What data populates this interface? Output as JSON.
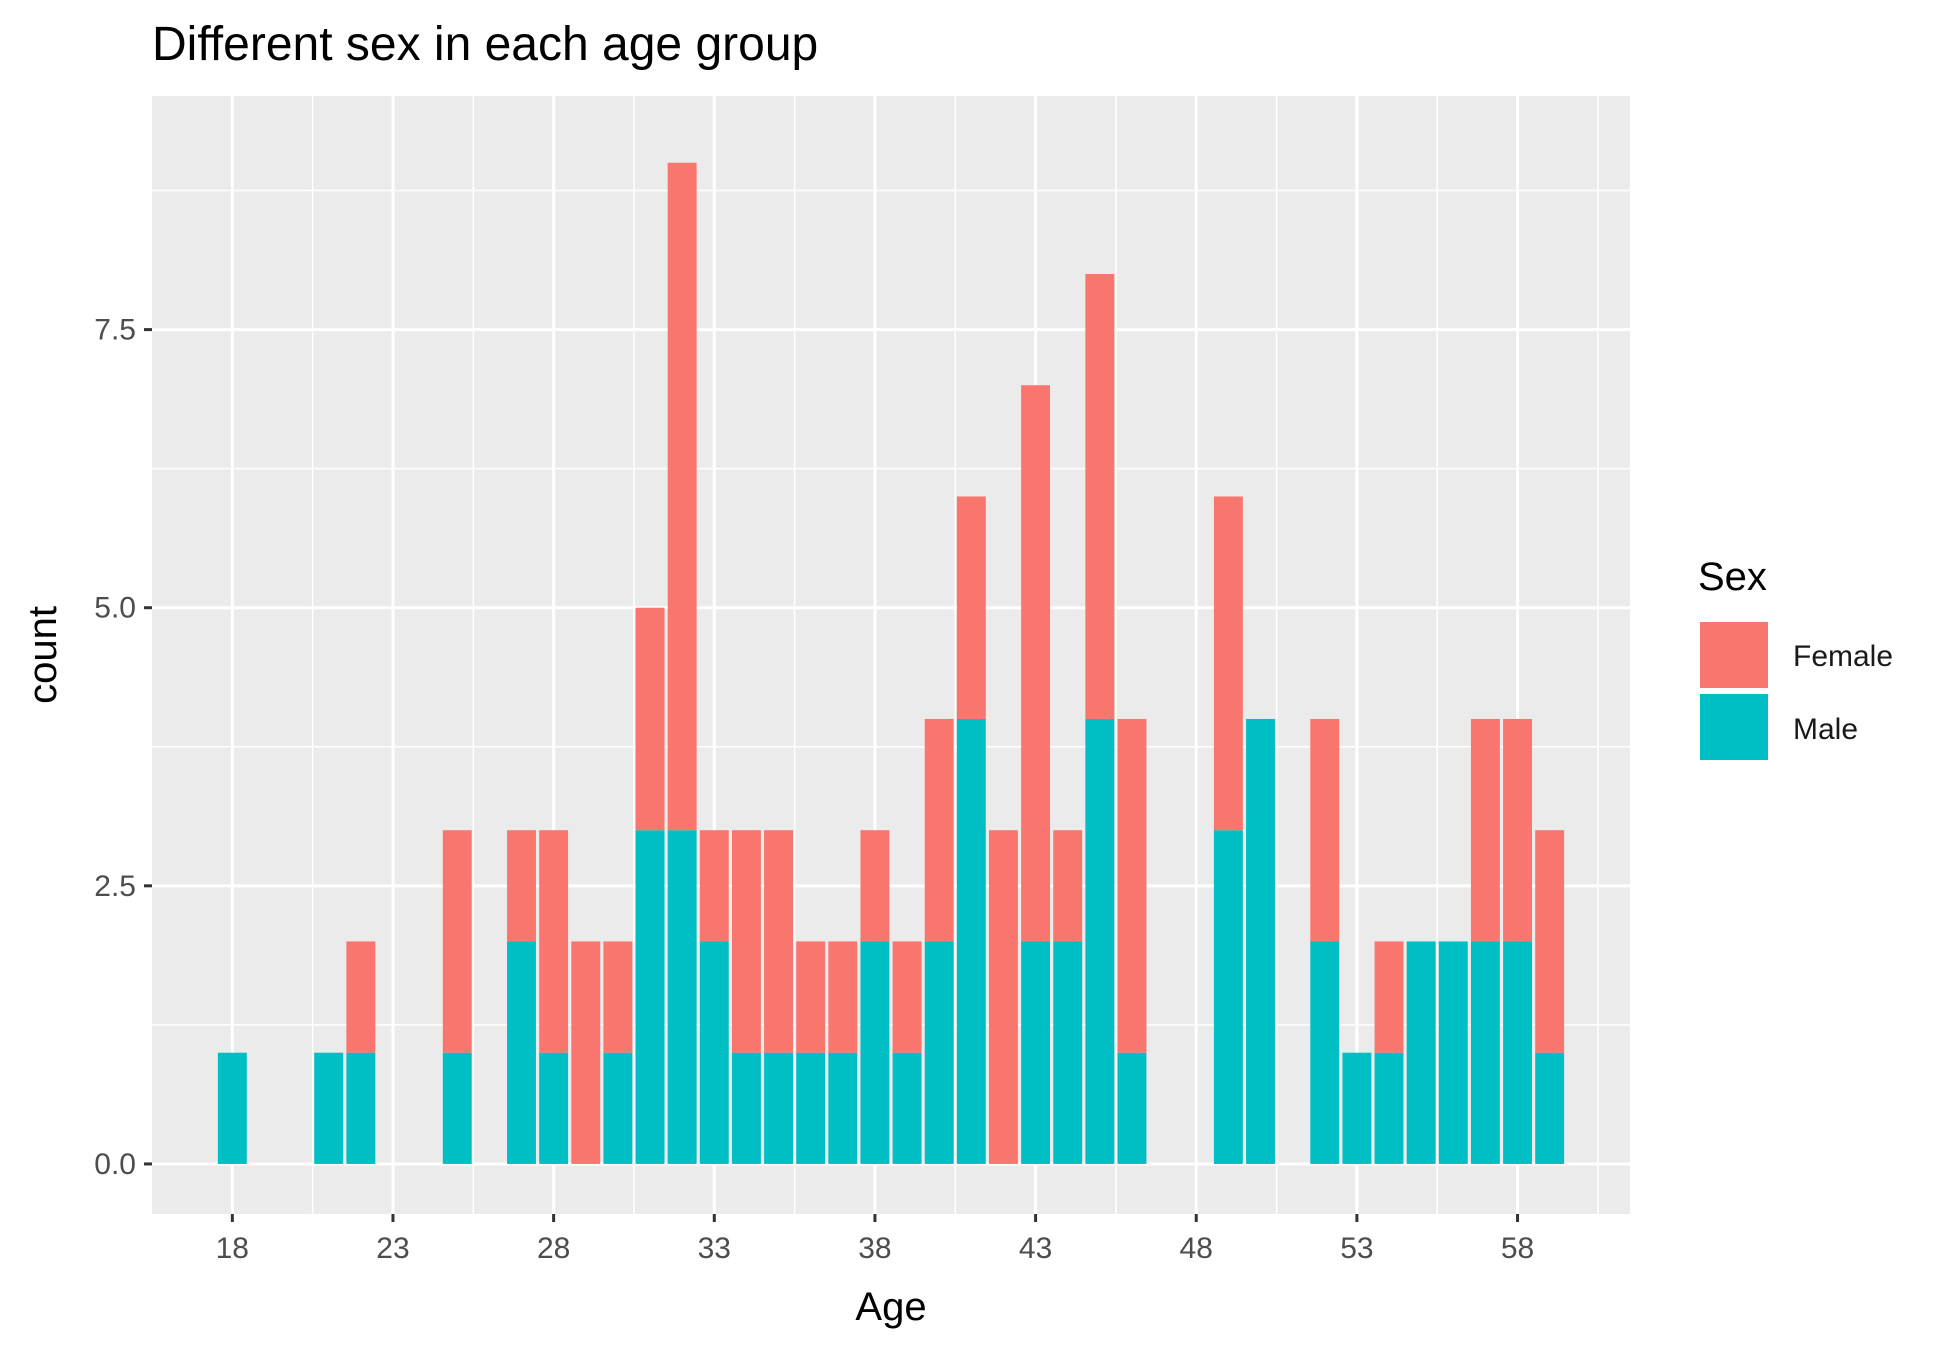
{
  "chart_data": {
    "type": "bar",
    "stacked": true,
    "title": "Different sex in each age group",
    "xlabel": "Age",
    "ylabel": "count",
    "x_ticks": [
      18,
      23,
      28,
      33,
      38,
      43,
      48,
      53,
      58
    ],
    "y_ticks": [
      0.0,
      2.5,
      5.0,
      7.5
    ],
    "y_tick_labels": [
      "0.0",
      "2.5",
      "5.0",
      "7.5"
    ],
    "xlim": [
      15.5,
      61.5
    ],
    "ylim": [
      -0.45,
      9.6
    ],
    "grid": true,
    "legend": {
      "title": "Sex",
      "position": "right"
    },
    "colors": {
      "Female": "#f8766d",
      "Male": "#00bfc4",
      "panel": "#ebebeb",
      "grid": "#ffffff"
    },
    "ages": [
      18,
      21,
      22,
      25,
      27,
      28,
      29,
      30,
      31,
      32,
      33,
      34,
      35,
      36,
      37,
      38,
      39,
      40,
      41,
      42,
      43,
      44,
      45,
      46,
      49,
      50,
      52,
      53,
      54,
      55,
      56,
      57,
      58,
      59
    ],
    "series": [
      {
        "name": "Male",
        "values": [
          1,
          1,
          1,
          1,
          2,
          1,
          0,
          1,
          3,
          3,
          2,
          1,
          1,
          1,
          1,
          2,
          1,
          2,
          4,
          0,
          2,
          2,
          4,
          1,
          3,
          4,
          2,
          1,
          1,
          2,
          2,
          2,
          2,
          1
        ]
      },
      {
        "name": "Female",
        "values": [
          0,
          0,
          1,
          2,
          1,
          2,
          2,
          1,
          2,
          6,
          1,
          2,
          2,
          1,
          1,
          1,
          1,
          2,
          2,
          3,
          5,
          1,
          4,
          3,
          3,
          0,
          2,
          0,
          1,
          0,
          0,
          2,
          2,
          2
        ]
      }
    ]
  }
}
